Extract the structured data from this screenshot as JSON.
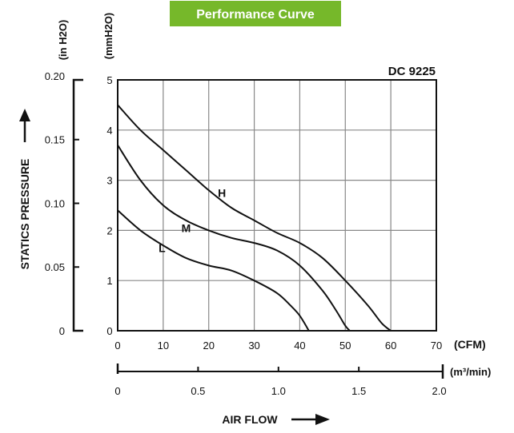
{
  "banner": {
    "text": "Performance Curve",
    "color": "#76b82a"
  },
  "chart_data": {
    "type": "line",
    "title": "Performance Curve",
    "model_label": "DC 9225",
    "x_axis_cfm": {
      "unit": "(CFM)",
      "ticks": [
        "0",
        "10",
        "20",
        "30",
        "40",
        "50",
        "60",
        "70"
      ],
      "range": [
        0,
        70
      ]
    },
    "x_axis_m3min": {
      "unit": "(m³/min)",
      "ticks": [
        "0",
        "0.5",
        "1.0",
        "1.5",
        "2.0"
      ],
      "tick_values": [
        0,
        0.5,
        1.0,
        1.5,
        2.0
      ]
    },
    "x_label": "AIR FLOW",
    "y_axis_mmh2o": {
      "unit": "(mmH2O)",
      "ticks": [
        "0",
        "1",
        "2",
        "3",
        "4",
        "5"
      ],
      "range": [
        0,
        5
      ]
    },
    "y_axis_inh2o": {
      "unit": "(in H2O)",
      "ticks": [
        "0",
        "0.05",
        "0.10",
        "0.15",
        "0.20"
      ],
      "tick_values": [
        0,
        0.05,
        0.1,
        0.15,
        0.2
      ]
    },
    "y_label": "STATICS PRESSURE",
    "grid": true,
    "series": [
      {
        "name": "H",
        "x": [
          0,
          5,
          10,
          15,
          20,
          25,
          30,
          35,
          40,
          45,
          50,
          55,
          58,
          60
        ],
        "y": [
          4.5,
          4.0,
          3.6,
          3.2,
          2.8,
          2.45,
          2.2,
          1.95,
          1.75,
          1.45,
          1.0,
          0.5,
          0.15,
          0
        ]
      },
      {
        "name": "M",
        "x": [
          0,
          5,
          10,
          15,
          20,
          25,
          30,
          35,
          40,
          45,
          48,
          50,
          51
        ],
        "y": [
          3.7,
          3.0,
          2.5,
          2.2,
          2.0,
          1.85,
          1.75,
          1.6,
          1.3,
          0.8,
          0.4,
          0.1,
          0
        ]
      },
      {
        "name": "L",
        "x": [
          0,
          5,
          10,
          15,
          20,
          25,
          30,
          35,
          38,
          40,
          42
        ],
        "y": [
          2.4,
          2.0,
          1.7,
          1.45,
          1.3,
          1.2,
          1.0,
          0.75,
          0.5,
          0.3,
          0
        ]
      }
    ]
  }
}
